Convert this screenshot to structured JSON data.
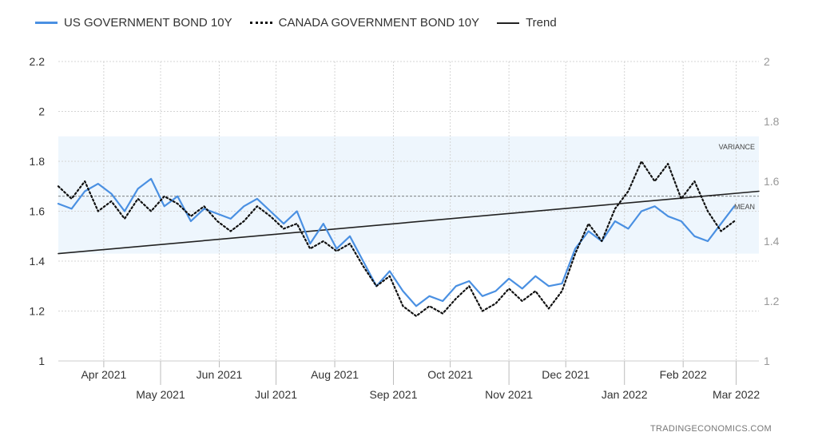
{
  "legend": {
    "us_label": "US GOVERNMENT BOND 10Y",
    "ca_label": "CANADA GOVERNMENT BOND 10Y",
    "trend_label": "Trend"
  },
  "source": "TRADINGECONOMICS.COM",
  "colors": {
    "us": "#4a90e2",
    "ca": "#111111",
    "trend": "#222222",
    "band": "#eef6fd",
    "grid": "#d4d4d4"
  },
  "chart_data": {
    "type": "line",
    "x_ticks_upper": [
      {
        "label": "Apr 2021",
        "date": "2021-04-01"
      },
      {
        "label": "Jun 2021",
        "date": "2021-06-01"
      },
      {
        "label": "Aug 2021",
        "date": "2021-08-01"
      },
      {
        "label": "Oct 2021",
        "date": "2021-10-01"
      },
      {
        "label": "Dec 2021",
        "date": "2021-12-01"
      },
      {
        "label": "Feb 2022",
        "date": "2022-02-01"
      }
    ],
    "x_ticks_lower": [
      {
        "label": "May 2021",
        "date": "2021-05-01"
      },
      {
        "label": "Jul 2021",
        "date": "2021-07-01"
      },
      {
        "label": "Sep 2021",
        "date": "2021-09-01"
      },
      {
        "label": "Nov 2021",
        "date": "2021-11-01"
      },
      {
        "label": "Jan 2022",
        "date": "2022-01-01"
      },
      {
        "label": "Mar 2022",
        "date": "2022-03-01"
      }
    ],
    "xlim": [
      "2021-03-08",
      "2022-03-13"
    ],
    "y_left": {
      "lim": [
        1,
        2.2
      ],
      "ticks": [
        "1",
        "1.2",
        "1.4",
        "1.6",
        "1.8",
        "2",
        "2.2"
      ]
    },
    "y_right": {
      "lim": [
        1,
        2
      ],
      "ticks": [
        "1",
        "1.2",
        "1.4",
        "1.6",
        "1.8",
        "2"
      ]
    },
    "grid": true,
    "legend_position": "top-left",
    "variance_band": {
      "label": "VARIANCE",
      "range": [
        1.43,
        1.9
      ]
    },
    "mean": {
      "label": "MEAN",
      "value": 1.66
    },
    "series": [
      {
        "name": "US GOVERNMENT BOND 10Y",
        "axis": "left",
        "style": "solid",
        "points": [
          [
            "2021-03-08",
            1.63
          ],
          [
            "2021-03-15",
            1.61
          ],
          [
            "2021-03-22",
            1.68
          ],
          [
            "2021-03-29",
            1.71
          ],
          [
            "2021-04-05",
            1.67
          ],
          [
            "2021-04-12",
            1.6
          ],
          [
            "2021-04-19",
            1.69
          ],
          [
            "2021-04-26",
            1.73
          ],
          [
            "2021-05-03",
            1.62
          ],
          [
            "2021-05-10",
            1.66
          ],
          [
            "2021-05-17",
            1.56
          ],
          [
            "2021-05-24",
            1.61
          ],
          [
            "2021-05-31",
            1.59
          ],
          [
            "2021-06-07",
            1.57
          ],
          [
            "2021-06-14",
            1.62
          ],
          [
            "2021-06-21",
            1.65
          ],
          [
            "2021-06-28",
            1.6
          ],
          [
            "2021-07-05",
            1.55
          ],
          [
            "2021-07-12",
            1.6
          ],
          [
            "2021-07-19",
            1.47
          ],
          [
            "2021-07-26",
            1.55
          ],
          [
            "2021-08-02",
            1.45
          ],
          [
            "2021-08-09",
            1.5
          ],
          [
            "2021-08-16",
            1.4
          ],
          [
            "2021-08-23",
            1.3
          ],
          [
            "2021-08-30",
            1.36
          ],
          [
            "2021-09-06",
            1.28
          ],
          [
            "2021-09-13",
            1.22
          ],
          [
            "2021-09-20",
            1.26
          ],
          [
            "2021-09-27",
            1.24
          ],
          [
            "2021-10-04",
            1.3
          ],
          [
            "2021-10-11",
            1.32
          ],
          [
            "2021-10-18",
            1.26
          ],
          [
            "2021-10-25",
            1.28
          ],
          [
            "2021-11-01",
            1.33
          ],
          [
            "2021-11-08",
            1.29
          ],
          [
            "2021-11-15",
            1.34
          ],
          [
            "2021-11-22",
            1.3
          ],
          [
            "2021-11-29",
            1.31
          ],
          [
            "2021-12-06",
            1.45
          ],
          [
            "2021-12-13",
            1.52
          ],
          [
            "2021-12-20",
            1.48
          ],
          [
            "2021-12-27",
            1.56
          ],
          [
            "2022-01-03",
            1.53
          ],
          [
            "2022-01-10",
            1.6
          ],
          [
            "2022-01-17",
            1.62
          ],
          [
            "2022-01-24",
            1.58
          ],
          [
            "2022-01-31",
            1.56
          ],
          [
            "2022-02-07",
            1.5
          ],
          [
            "2022-02-14",
            1.48
          ],
          [
            "2022-02-21",
            1.55
          ],
          [
            "2022-02-28",
            1.62
          ]
        ]
      },
      {
        "name": "CANADA GOVERNMENT BOND 10Y",
        "axis": "left",
        "style": "dotted",
        "points": [
          [
            "2021-03-08",
            1.7
          ],
          [
            "2021-03-15",
            1.65
          ],
          [
            "2021-03-22",
            1.72
          ],
          [
            "2021-03-29",
            1.6
          ],
          [
            "2021-04-05",
            1.64
          ],
          [
            "2021-04-12",
            1.57
          ],
          [
            "2021-04-19",
            1.65
          ],
          [
            "2021-04-26",
            1.6
          ],
          [
            "2021-05-03",
            1.66
          ],
          [
            "2021-05-10",
            1.63
          ],
          [
            "2021-05-17",
            1.58
          ],
          [
            "2021-05-24",
            1.62
          ],
          [
            "2021-05-31",
            1.56
          ],
          [
            "2021-06-07",
            1.52
          ],
          [
            "2021-06-14",
            1.56
          ],
          [
            "2021-06-21",
            1.62
          ],
          [
            "2021-06-28",
            1.58
          ],
          [
            "2021-07-05",
            1.53
          ],
          [
            "2021-07-12",
            1.55
          ],
          [
            "2021-07-19",
            1.45
          ],
          [
            "2021-07-26",
            1.48
          ],
          [
            "2021-08-02",
            1.44
          ],
          [
            "2021-08-09",
            1.47
          ],
          [
            "2021-08-16",
            1.38
          ],
          [
            "2021-08-23",
            1.3
          ],
          [
            "2021-08-30",
            1.34
          ],
          [
            "2021-09-06",
            1.22
          ],
          [
            "2021-09-13",
            1.18
          ],
          [
            "2021-09-20",
            1.22
          ],
          [
            "2021-09-27",
            1.19
          ],
          [
            "2021-10-04",
            1.25
          ],
          [
            "2021-10-11",
            1.3
          ],
          [
            "2021-10-18",
            1.2
          ],
          [
            "2021-10-25",
            1.23
          ],
          [
            "2021-11-01",
            1.29
          ],
          [
            "2021-11-08",
            1.24
          ],
          [
            "2021-11-15",
            1.28
          ],
          [
            "2021-11-22",
            1.21
          ],
          [
            "2021-11-29",
            1.28
          ],
          [
            "2021-12-06",
            1.43
          ],
          [
            "2021-12-13",
            1.55
          ],
          [
            "2021-12-20",
            1.48
          ],
          [
            "2021-12-27",
            1.61
          ],
          [
            "2022-01-03",
            1.68
          ],
          [
            "2022-01-10",
            1.8
          ],
          [
            "2022-01-17",
            1.72
          ],
          [
            "2022-01-24",
            1.79
          ],
          [
            "2022-01-31",
            1.65
          ],
          [
            "2022-02-07",
            1.72
          ],
          [
            "2022-02-14",
            1.6
          ],
          [
            "2022-02-21",
            1.52
          ],
          [
            "2022-02-28",
            1.56
          ]
        ]
      },
      {
        "name": "Trend",
        "axis": "left",
        "style": "solid",
        "points": [
          [
            "2021-03-08",
            1.43
          ],
          [
            "2022-03-13",
            1.68
          ]
        ]
      }
    ]
  }
}
